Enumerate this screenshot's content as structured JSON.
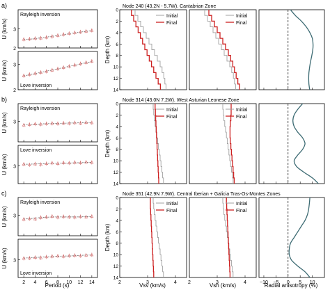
{
  "rows": [
    {
      "row_label": "a)",
      "title": "Node 240 (43.2N - 5.7W). Cantabrian Zone"
    },
    {
      "row_label": "b)",
      "title": "Node 314 (43.0N 7.2W). West Asturian Leonese Zone"
    },
    {
      "row_label": "c)",
      "title": "Node 351 (42.9N 7.9W). Central Iberian + Galicia Tras-Os-Montes Zones"
    }
  ],
  "dispersion_labels": {
    "rayleigh": "Rayleigh inversion",
    "love": "Love inversion",
    "ylabel": "U (km/s)"
  },
  "legend": {
    "initial": "Initial",
    "final": "Final"
  },
  "bottom_axes": {
    "period_label": "Period (s)",
    "vsv_label": "Vsv (km/s)",
    "vsh_label": "Vsh (km/s)",
    "aniso_label": "Radial anisotropy (%)",
    "depth_label": "Depth (km)"
  },
  "colors": {
    "initial": "#a0a0a0",
    "final": "#cc1f1f",
    "aniso": "#3d6b73",
    "obs": "#d47070"
  },
  "chart_data": [
    {
      "type": "line",
      "panel": "a-rayleigh",
      "xlabel": "Period (s)",
      "ylabel": "U (km/s)",
      "xlim": [
        1,
        15
      ],
      "ylim": [
        2,
        4
      ],
      "yticks": [
        2,
        3
      ],
      "x": [
        2,
        3,
        4,
        5,
        6,
        7,
        8,
        9,
        10,
        11,
        12,
        13,
        14
      ],
      "series": [
        {
          "name": "observed",
          "values": [
            2.45,
            2.47,
            2.5,
            2.52,
            2.56,
            2.6,
            2.66,
            2.71,
            2.76,
            2.8,
            2.84,
            2.88,
            2.92
          ]
        },
        {
          "name": "predicted",
          "values": [
            2.44,
            2.46,
            2.49,
            2.53,
            2.57,
            2.61,
            2.65,
            2.7,
            2.75,
            2.79,
            2.83,
            2.87,
            2.91
          ]
        }
      ]
    },
    {
      "type": "line",
      "panel": "a-love",
      "xlabel": "Period (s)",
      "ylabel": "U (km/s)",
      "xlim": [
        1,
        15
      ],
      "ylim": [
        2,
        3.5
      ],
      "yticks": [
        2,
        3
      ],
      "x": [
        2,
        3,
        4,
        5,
        6,
        7,
        8,
        9,
        10,
        11,
        12,
        13,
        14
      ],
      "series": [
        {
          "name": "observed",
          "values": [
            2.55,
            2.6,
            2.64,
            2.68,
            2.72,
            2.77,
            2.82,
            2.87,
            2.92,
            2.97,
            3.02,
            3.07,
            3.12
          ]
        },
        {
          "name": "predicted",
          "values": [
            2.54,
            2.59,
            2.63,
            2.68,
            2.73,
            2.77,
            2.82,
            2.87,
            2.92,
            2.96,
            3.01,
            3.06,
            3.1
          ]
        }
      ]
    },
    {
      "type": "line",
      "panel": "b-rayleigh",
      "xlabel": "Period (s)",
      "ylabel": "U (km/s)",
      "xlim": [
        1,
        15
      ],
      "ylim": [
        2.3,
        3.6
      ],
      "yticks": [
        3
      ],
      "x": [
        2,
        3,
        4,
        5,
        6,
        7,
        8,
        9,
        10,
        11,
        12,
        13,
        14
      ],
      "series": [
        {
          "name": "observed",
          "values": [
            2.87,
            2.89,
            2.91,
            2.9,
            2.92,
            2.93,
            2.92,
            2.94,
            2.93,
            2.95,
            2.94,
            2.96,
            2.95
          ]
        },
        {
          "name": "predicted",
          "values": [
            2.88,
            2.89,
            2.9,
            2.91,
            2.92,
            2.92,
            2.93,
            2.93,
            2.94,
            2.94,
            2.95,
            2.95,
            2.96
          ]
        }
      ]
    },
    {
      "type": "line",
      "panel": "b-love",
      "xlabel": "Period (s)",
      "ylabel": "U (km/s)",
      "xlim": [
        1,
        15
      ],
      "ylim": [
        2.4,
        3.7
      ],
      "yticks": [
        3
      ],
      "x": [
        2,
        3,
        4,
        5,
        6,
        7,
        8,
        9,
        10,
        11,
        12,
        13,
        14
      ],
      "series": [
        {
          "name": "observed",
          "values": [
            3.06,
            3.04,
            3.07,
            3.05,
            3.08,
            3.1,
            3.08,
            3.11,
            3.1,
            3.12,
            3.11,
            3.13,
            3.12
          ]
        },
        {
          "name": "predicted",
          "values": [
            3.06,
            3.06,
            3.07,
            3.07,
            3.08,
            3.09,
            3.09,
            3.1,
            3.1,
            3.11,
            3.11,
            3.12,
            3.12
          ]
        }
      ]
    },
    {
      "type": "line",
      "panel": "c-rayleigh",
      "xlabel": "Period (s)",
      "ylabel": "U (km/s)",
      "xlim": [
        1,
        15
      ],
      "ylim": [
        2.3,
        3.6
      ],
      "yticks": [
        3
      ],
      "x": [
        2,
        3,
        4,
        5,
        6,
        7,
        8,
        9,
        10,
        11,
        12,
        13,
        14
      ],
      "series": [
        {
          "name": "observed",
          "values": [
            2.86,
            2.88,
            2.87,
            2.92,
            2.94,
            2.96,
            2.93,
            2.95,
            2.94,
            2.93,
            2.95,
            2.94,
            2.96
          ]
        },
        {
          "name": "predicted",
          "values": [
            2.87,
            2.88,
            2.9,
            2.92,
            2.93,
            2.94,
            2.94,
            2.94,
            2.94,
            2.94,
            2.94,
            2.95,
            2.95
          ]
        }
      ]
    },
    {
      "type": "line",
      "panel": "c-love",
      "xlabel": "Period (s)",
      "ylabel": "U (km/s)",
      "xlim": [
        1,
        15
      ],
      "ylim": [
        2.4,
        3.7
      ],
      "yticks": [
        3
      ],
      "x": [
        2,
        3,
        4,
        5,
        6,
        7,
        8,
        9,
        10,
        11,
        12,
        13,
        14
      ],
      "series": [
        {
          "name": "observed",
          "values": [
            3.05,
            3.06,
            3.08,
            3.07,
            3.1,
            3.12,
            3.13,
            3.12,
            3.14,
            3.15,
            3.14,
            3.16,
            3.17
          ]
        },
        {
          "name": "predicted",
          "values": [
            3.06,
            3.07,
            3.08,
            3.09,
            3.1,
            3.11,
            3.12,
            3.13,
            3.13,
            3.14,
            3.15,
            3.16,
            3.16
          ]
        }
      ]
    },
    {
      "type": "line",
      "panel": "a-vsv",
      "xlabel": "Vsv (km/s)",
      "ylabel": "Depth (km)",
      "xlim": [
        2,
        4.4
      ],
      "ylim": [
        14,
        0
      ],
      "depth_bounds": [
        0,
        1,
        2,
        3,
        4,
        5,
        6,
        7,
        8,
        9,
        10,
        11,
        12,
        13,
        14
      ],
      "series": [
        {
          "name": "Initial",
          "values": [
            2.55,
            2.65,
            2.75,
            2.85,
            2.95,
            3.05,
            3.15,
            3.25,
            3.35,
            3.45,
            3.52,
            3.58,
            3.62,
            3.66
          ]
        },
        {
          "name": "Final",
          "values": [
            2.42,
            2.5,
            2.58,
            2.66,
            2.74,
            2.82,
            2.9,
            2.98,
            3.06,
            3.14,
            3.22,
            3.3,
            3.38,
            3.46
          ]
        }
      ]
    },
    {
      "type": "line",
      "panel": "a-vsh",
      "xlabel": "Vsh (km/s)",
      "ylabel": "Depth (km)",
      "xlim": [
        2,
        4.4
      ],
      "ylim": [
        14,
        0
      ],
      "depth_bounds": [
        0,
        1,
        2,
        3,
        4,
        5,
        6,
        7,
        8,
        9,
        10,
        11,
        12,
        13,
        14
      ],
      "series": [
        {
          "name": "Initial",
          "values": [
            2.55,
            2.65,
            2.75,
            2.85,
            2.95,
            3.05,
            3.15,
            3.25,
            3.35,
            3.45,
            3.52,
            3.58,
            3.62,
            3.66
          ]
        },
        {
          "name": "Final",
          "values": [
            2.7,
            2.8,
            2.9,
            3.0,
            3.1,
            3.2,
            3.3,
            3.4,
            3.48,
            3.56,
            3.62,
            3.68,
            3.74,
            3.8
          ]
        }
      ]
    },
    {
      "type": "line",
      "panel": "a-aniso",
      "xlabel": "Radial anisotropy (%)",
      "ylabel": "Depth (km)",
      "xlim": [
        -12,
        15
      ],
      "ylim": [
        14,
        0
      ],
      "depth": [
        0,
        1,
        2,
        3,
        4,
        5,
        6,
        7,
        8,
        9,
        10,
        11,
        12,
        13,
        14
      ],
      "series": [
        {
          "name": "anisotropy",
          "values": [
            1,
            3,
            5.5,
            7.5,
            9,
            10,
            10.3,
            10.2,
            9.8,
            9.3,
            8.9,
            8.6,
            8.5,
            8.6,
            8.9
          ]
        }
      ]
    },
    {
      "type": "line",
      "panel": "b-vsv",
      "xlabel": "Vsv (km/s)",
      "ylabel": "Depth (km)",
      "xlim": [
        2,
        4.4
      ],
      "ylim": [
        14,
        0
      ],
      "depth_bounds": [
        0,
        1,
        2,
        3,
        4,
        5,
        6,
        7,
        8,
        9,
        10,
        11,
        12,
        13,
        14
      ],
      "series": [
        {
          "name": "Initial",
          "values": [
            3.2,
            3.22,
            3.24,
            3.27,
            3.3,
            3.33,
            3.36,
            3.39,
            3.42,
            3.45,
            3.48,
            3.51,
            3.54,
            3.57
          ]
        },
        {
          "name": "Final",
          "values": [
            3.27,
            3.28,
            3.29,
            3.3,
            3.31,
            3.32,
            3.33,
            3.34,
            3.35,
            3.36,
            3.37,
            3.38,
            3.39,
            3.4
          ]
        }
      ]
    },
    {
      "type": "line",
      "panel": "b-vsh",
      "xlabel": "Vsh (km/s)",
      "ylabel": "Depth (km)",
      "xlim": [
        2,
        4.4
      ],
      "ylim": [
        14,
        0
      ],
      "depth_bounds": [
        0,
        1,
        2,
        3,
        4,
        5,
        6,
        7,
        8,
        9,
        10,
        11,
        12,
        13,
        14
      ],
      "series": [
        {
          "name": "Initial",
          "values": [
            3.2,
            3.22,
            3.24,
            3.27,
            3.3,
            3.33,
            3.36,
            3.39,
            3.42,
            3.45,
            3.48,
            3.51,
            3.54,
            3.57
          ]
        },
        {
          "name": "Final",
          "values": [
            3.5,
            3.5,
            3.49,
            3.47,
            3.46,
            3.46,
            3.47,
            3.49,
            3.51,
            3.53,
            3.55,
            3.57,
            3.59,
            3.61
          ]
        }
      ]
    },
    {
      "type": "line",
      "panel": "b-aniso",
      "xlabel": "Radial anisotropy (%)",
      "ylabel": "Depth (km)",
      "xlim": [
        -12,
        15
      ],
      "ylim": [
        14,
        0
      ],
      "depth": [
        0,
        1,
        2,
        3,
        4,
        5,
        6,
        7,
        8,
        9,
        10,
        11,
        12,
        13,
        14
      ],
      "series": [
        {
          "name": "anisotropy",
          "values": [
            6,
            4,
            2.5,
            2,
            2.5,
            4,
            6,
            7,
            6,
            4,
            2.5,
            3.5,
            6.5,
            10,
            12.5
          ]
        }
      ]
    },
    {
      "type": "line",
      "panel": "c-vsv",
      "xlabel": "Vsv (km/s)",
      "ylabel": "Depth (km)",
      "xlim": [
        2,
        4.4
      ],
      "ylim": [
        14,
        0
      ],
      "depth_bounds": [
        0,
        1,
        2,
        3,
        4,
        5,
        6,
        7,
        8,
        9,
        10,
        11,
        12,
        13,
        14
      ],
      "series": [
        {
          "name": "Initial",
          "values": [
            3.2,
            3.22,
            3.24,
            3.27,
            3.3,
            3.33,
            3.36,
            3.39,
            3.42,
            3.45,
            3.48,
            3.51,
            3.54,
            3.57
          ]
        },
        {
          "name": "Final",
          "values": [
            3.1,
            3.1,
            3.11,
            3.12,
            3.13,
            3.14,
            3.15,
            3.16,
            3.17,
            3.18,
            3.19,
            3.2,
            3.21,
            3.22
          ]
        }
      ]
    },
    {
      "type": "line",
      "panel": "c-vsh",
      "xlabel": "Vsh (km/s)",
      "ylabel": "Depth (km)",
      "xlim": [
        2,
        4.4
      ],
      "ylim": [
        14,
        0
      ],
      "depth_bounds": [
        0,
        1,
        2,
        3,
        4,
        5,
        6,
        7,
        8,
        9,
        10,
        11,
        12,
        13,
        14
      ],
      "series": [
        {
          "name": "Initial",
          "values": [
            3.2,
            3.22,
            3.24,
            3.27,
            3.3,
            3.33,
            3.36,
            3.39,
            3.42,
            3.45,
            3.48,
            3.51,
            3.54,
            3.57
          ]
        },
        {
          "name": "Final",
          "values": [
            3.33,
            3.34,
            3.35,
            3.36,
            3.37,
            3.38,
            3.39,
            3.4,
            3.41,
            3.42,
            3.43,
            3.44,
            3.45,
            3.46
          ]
        }
      ]
    },
    {
      "type": "line",
      "panel": "c-aniso",
      "xlabel": "Radial anisotropy (%)",
      "ylabel": "Depth (km)",
      "xlim": [
        -12,
        15
      ],
      "ylim": [
        14,
        0
      ],
      "depth": [
        0,
        1,
        2,
        3,
        4,
        5,
        6,
        7,
        8,
        9,
        10,
        11,
        12,
        13,
        14
      ],
      "series": [
        {
          "name": "anisotropy",
          "values": [
            9,
            8.8,
            8.5,
            8,
            7,
            5.5,
            4,
            2.5,
            1,
            0.5,
            0.5,
            1.5,
            4,
            7,
            9
          ]
        }
      ]
    }
  ]
}
